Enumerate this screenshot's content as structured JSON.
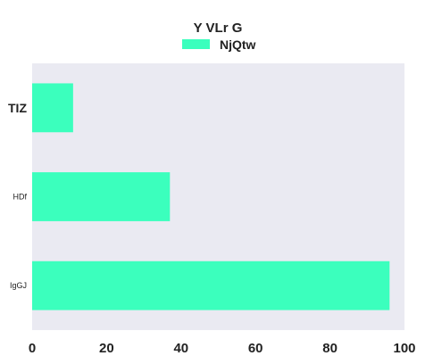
{
  "chart_data": {
    "type": "bar",
    "orientation": "horizontal",
    "title": "Y VLr G",
    "categories": [
      "TIZ",
      "HDf",
      "IgGJ"
    ],
    "series": [
      {
        "name": "NjQtw",
        "values": [
          11,
          37,
          96
        ],
        "color": "#3bffbd"
      }
    ],
    "xlim": [
      0,
      100
    ],
    "xticks": [
      0,
      20,
      40,
      60,
      80,
      100
    ],
    "grid": false,
    "legend": "top-center",
    "plot_background": "#eaeaf2"
  }
}
